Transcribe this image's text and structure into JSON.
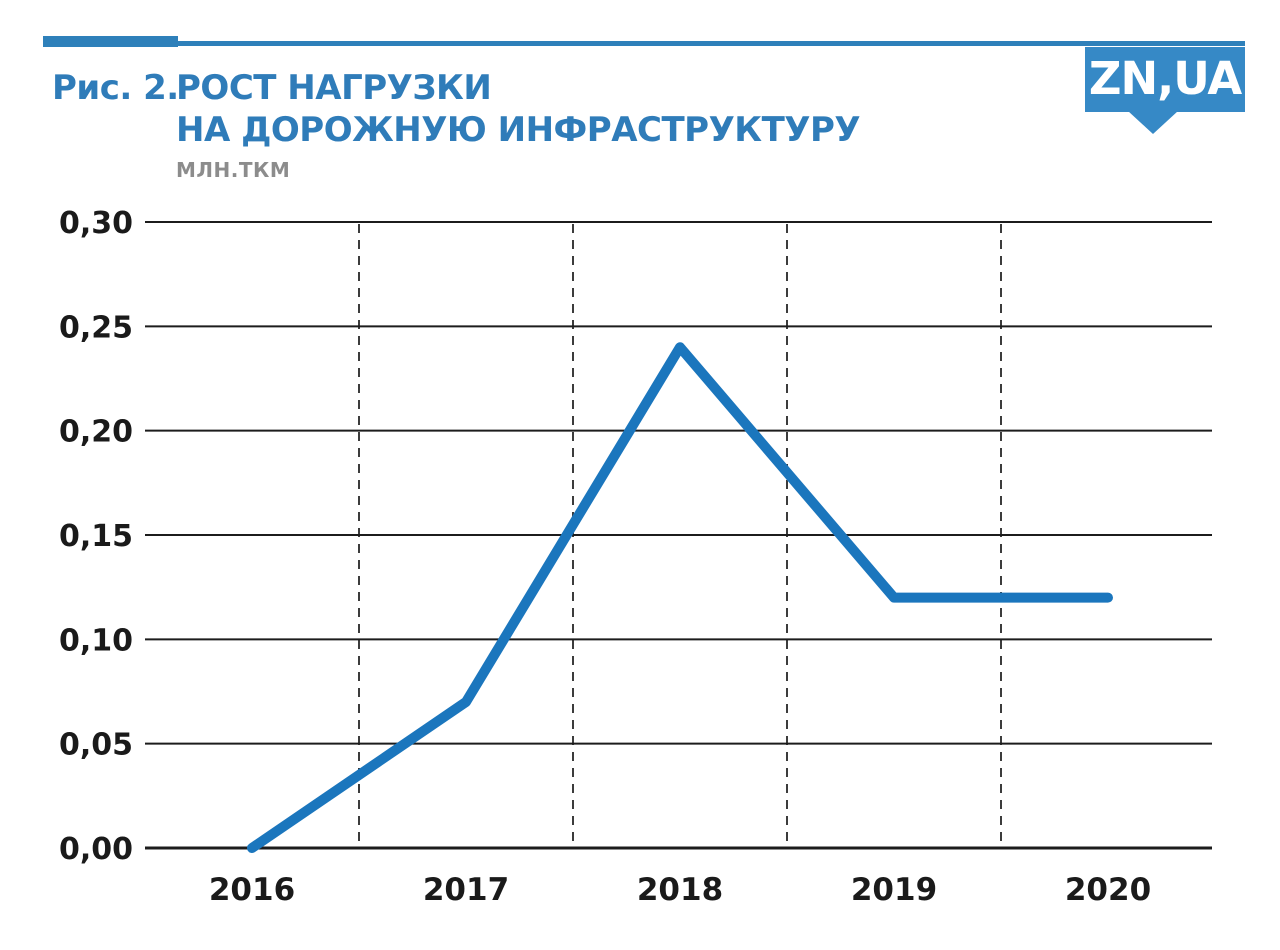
{
  "header": {
    "figure_label": "Рис. 2.",
    "title_line1": "РОСТ НАГРУЗКИ",
    "title_line2": "НА ДОРОЖНУЮ ИНФРАСТРУКТУРУ",
    "unit_label": "млн.ткм",
    "logo_text": "ZN,UA"
  },
  "colors": {
    "accent_line_blue": "#1b76bd",
    "title_blue": "#2f7cb9",
    "logo_blue": "#3689c6",
    "bar_blue": "#2e80ba",
    "subtitle_gray": "#8c8c8c",
    "grid_dark": "#1c1c1c",
    "dash_gray": "#3c3c3c",
    "tick_text": "#1a1a1a"
  },
  "chart_data": {
    "type": "line",
    "title": "РОСТ НАГРУЗКИ НА ДОРОЖНУЮ ИНФРАСТРУКТУРУ",
    "ylabel": "млн.ткм",
    "xlabel": "",
    "categories": [
      "2016",
      "2017",
      "2018",
      "2019",
      "2020"
    ],
    "values": [
      0.0,
      0.07,
      0.24,
      0.12,
      0.12
    ],
    "ylim": [
      0,
      0.3
    ],
    "y_ticks": [
      0,
      0.05,
      0.1,
      0.15,
      0.2,
      0.25,
      0.3
    ],
    "y_tick_labels": [
      "0,00",
      "0,05",
      "0,10",
      "0,15",
      "0,20",
      "0,25",
      "0,30"
    ],
    "grid_horizontal": "solid",
    "grid_vertical": "dashed, between category centers",
    "legend": "none"
  }
}
